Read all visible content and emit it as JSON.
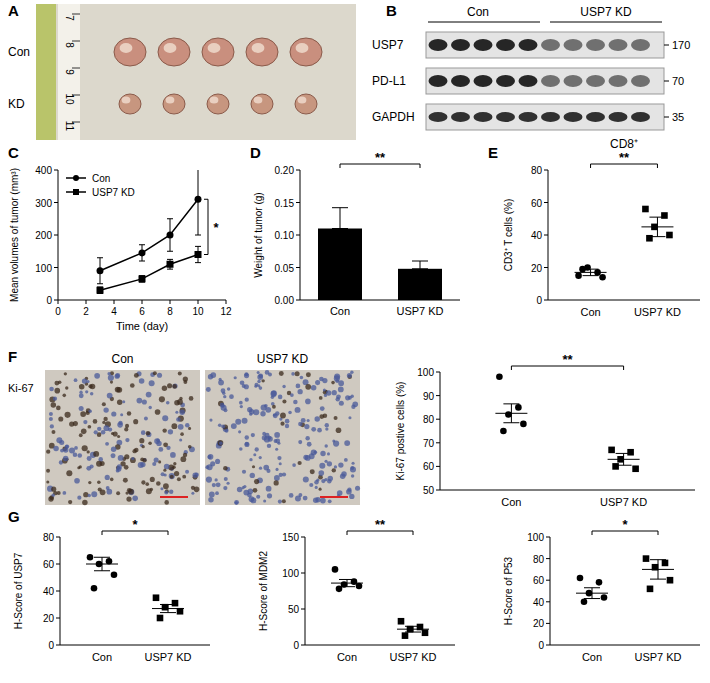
{
  "figure": {
    "photo": {
      "panel": "A",
      "rows": [
        "Con",
        "KD"
      ],
      "ruler": [
        "7",
        "8",
        "9",
        "10",
        "11"
      ]
    },
    "blot": {
      "panel": "B",
      "groups": [
        "Con",
        "USP7 KD"
      ],
      "rows": [
        "USP7",
        "PD-L1",
        "GAPDH"
      ],
      "mw": [
        170,
        70,
        35
      ]
    },
    "ihc": {
      "panel": "F",
      "stain": "Ki-67",
      "images": [
        "Con",
        "USP7 KD"
      ]
    }
  },
  "chart_data": [
    {
      "panel": "C",
      "type": "line",
      "x": [
        3,
        6,
        8,
        10
      ],
      "series": [
        {
          "name": "Con",
          "color": "#000000",
          "marker": "circle",
          "values": [
            90,
            145,
            200,
            310
          ],
          "errors": [
            40,
            25,
            50,
            110
          ]
        },
        {
          "name": "USP7 KD",
          "color": "#000000",
          "marker": "square",
          "values": [
            30,
            65,
            110,
            140
          ],
          "errors": [
            10,
            10,
            15,
            25
          ]
        }
      ],
      "x_label": "Time (day)",
      "y_label": "Mean volumes of tumor (mm³)",
      "xlim": [
        0,
        12
      ],
      "xticks": [
        0,
        2,
        4,
        6,
        8,
        10,
        12
      ],
      "ylim": [
        0,
        400
      ],
      "yticks": [
        0,
        100,
        200,
        300,
        400
      ],
      "legend": "upper left",
      "significance": "*"
    },
    {
      "panel": "D",
      "type": "bar",
      "categories": [
        "Con",
        "USP7 KD"
      ],
      "values": [
        0.11,
        0.048
      ],
      "errors": [
        0.032,
        0.012
      ],
      "color": "#000000",
      "y_label": "Weight of tumor (g)",
      "ylim": [
        0,
        0.2
      ],
      "yticks": [
        {
          "value": 0,
          "label": "0.00"
        },
        {
          "value": 0.05,
          "label": "0.05"
        },
        {
          "value": 0.1,
          "label": "0.10"
        },
        {
          "value": 0.15,
          "label": "0.15"
        },
        {
          "value": 0.2,
          "label": "0.20"
        }
      ],
      "significance": "**"
    },
    {
      "panel": "E",
      "type": "scatter",
      "title": "CD8⁺",
      "y_label": "CD3⁺ T cells (%)",
      "categories": [
        "Con",
        "USP7 KD"
      ],
      "groups": [
        {
          "marker": "circle",
          "points": [
            15,
            17,
            20,
            14,
            19
          ],
          "mean": 17,
          "error": 2
        },
        {
          "marker": "square",
          "points": [
            56,
            52,
            45,
            40,
            38
          ],
          "mean": 45,
          "error": 6
        }
      ],
      "ylim": [
        0,
        80
      ],
      "yticks": [
        0,
        20,
        40,
        60,
        80
      ],
      "significance": "**"
    },
    {
      "type": "scatter",
      "y_label": "Ki-67 postive cells (%)",
      "categories": [
        "Con",
        "USP7 KD"
      ],
      "groups": [
        {
          "marker": "circle",
          "points": [
            98,
            85,
            82,
            78,
            75
          ],
          "mean": 82.5,
          "error": 4
        },
        {
          "marker": "square",
          "points": [
            67,
            66,
            63,
            59,
            60
          ],
          "mean": 63,
          "error": 2.5
        }
      ],
      "ylim": [
        50,
        100
      ],
      "yticks": [
        50,
        60,
        70,
        80,
        90,
        100
      ],
      "significance": "**"
    },
    {
      "panel": "G",
      "type": "scatter",
      "y_label": "H-Score of USP7",
      "categories": [
        "Con",
        "USP7 KD"
      ],
      "groups": [
        {
          "marker": "circle",
          "points": [
            65,
            62,
            60,
            52,
            42
          ],
          "mean": 60,
          "error": 5
        },
        {
          "marker": "square",
          "points": [
            35,
            31,
            28,
            25,
            20
          ],
          "mean": 27,
          "error": 3
        }
      ],
      "ylim": [
        0,
        80
      ],
      "yticks": [
        0,
        20,
        40,
        60,
        80
      ],
      "significance": "*"
    },
    {
      "type": "scatter",
      "y_label": "H-Score of MDM2",
      "categories": [
        "Con",
        "USP7 KD"
      ],
      "groups": [
        {
          "marker": "circle",
          "points": [
            105,
            88,
            84,
            82,
            78
          ],
          "mean": 86,
          "error": 5
        },
        {
          "marker": "square",
          "points": [
            33,
            25,
            22,
            17,
            13
          ],
          "mean": 22,
          "error": 4
        }
      ],
      "ylim": [
        0,
        150
      ],
      "yticks": [
        0,
        50,
        100,
        150
      ],
      "significance": "**"
    },
    {
      "type": "scatter",
      "y_label": "H-Score of P53",
      "categories": [
        "Con",
        "USP7 KD"
      ],
      "groups": [
        {
          "marker": "circle",
          "points": [
            62,
            58,
            48,
            44,
            40
          ],
          "mean": 48,
          "error": 5
        },
        {
          "marker": "square",
          "points": [
            80,
            76,
            72,
            60,
            52
          ],
          "mean": 70,
          "error": 9
        }
      ],
      "ylim": [
        0,
        100
      ],
      "yticks": [
        0,
        20,
        40,
        60,
        80,
        100
      ],
      "significance": "*"
    }
  ]
}
